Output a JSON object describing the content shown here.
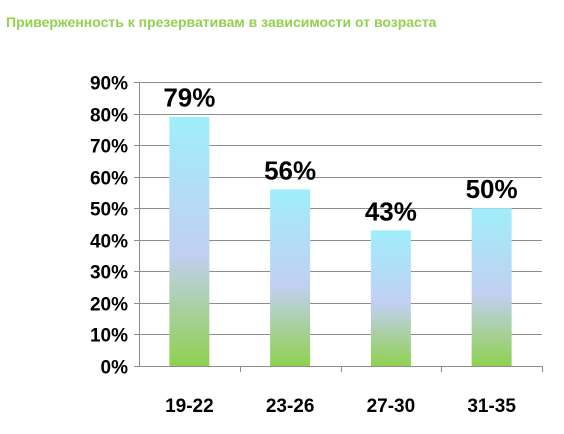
{
  "chart_data": {
    "type": "bar",
    "title": "Приверженность к презервативам в зависимости от возраста",
    "xlabel": "",
    "ylabel": "",
    "categories": [
      "19-22",
      "23-26",
      "27-30",
      "31-35"
    ],
    "values": [
      79,
      56,
      43,
      50
    ],
    "data_labels": [
      "79%",
      "56%",
      "43%",
      "50%"
    ],
    "ylim": [
      0,
      90
    ],
    "yticks": [
      0,
      10,
      20,
      30,
      40,
      50,
      60,
      70,
      80,
      90
    ],
    "ytick_labels": [
      "0%",
      "10%",
      "20%",
      "30%",
      "40%",
      "50%",
      "60%",
      "70%",
      "80%",
      "90%"
    ],
    "grid": true,
    "legend": "none",
    "colors": {
      "title": "#92d050",
      "bar_top": "#a0eefa",
      "bar_middle": "#c2cff0",
      "bar_bottom": "#8fd150",
      "grid": "#8c8c8c"
    }
  }
}
